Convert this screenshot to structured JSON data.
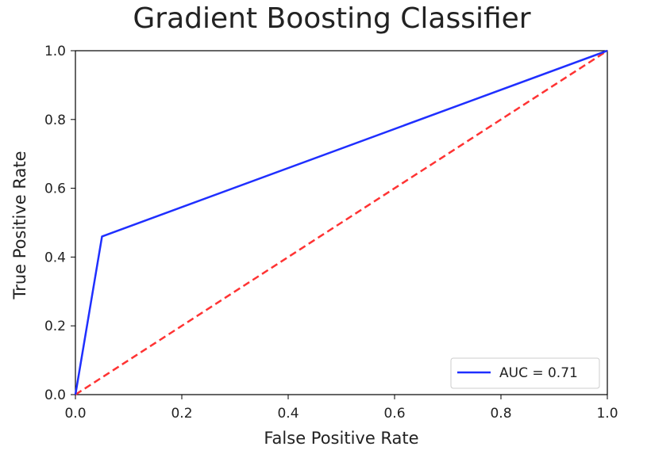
{
  "chart_data": {
    "type": "line",
    "title": "Gradient Boosting Classifier",
    "xlabel": "False Positive Rate",
    "ylabel": "True Positive Rate",
    "xlim": [
      0.0,
      1.0
    ],
    "ylim": [
      0.0,
      1.0
    ],
    "xticks": [
      "0.0",
      "0.2",
      "0.4",
      "0.6",
      "0.8",
      "1.0"
    ],
    "yticks": [
      "0.0",
      "0.2",
      "0.4",
      "0.6",
      "0.8",
      "1.0"
    ],
    "grid": false,
    "legend_position": "lower-right",
    "series": [
      {
        "name": "AUC = 0.71",
        "color": "#1f2fff",
        "style": "solid",
        "x": [
          0.0,
          0.05,
          1.0
        ],
        "y": [
          0.0,
          0.46,
          1.0
        ]
      },
      {
        "color": "#ff3333",
        "style": "dashed",
        "x": [
          0.0,
          1.0
        ],
        "y": [
          0.0,
          1.0
        ]
      }
    ]
  }
}
